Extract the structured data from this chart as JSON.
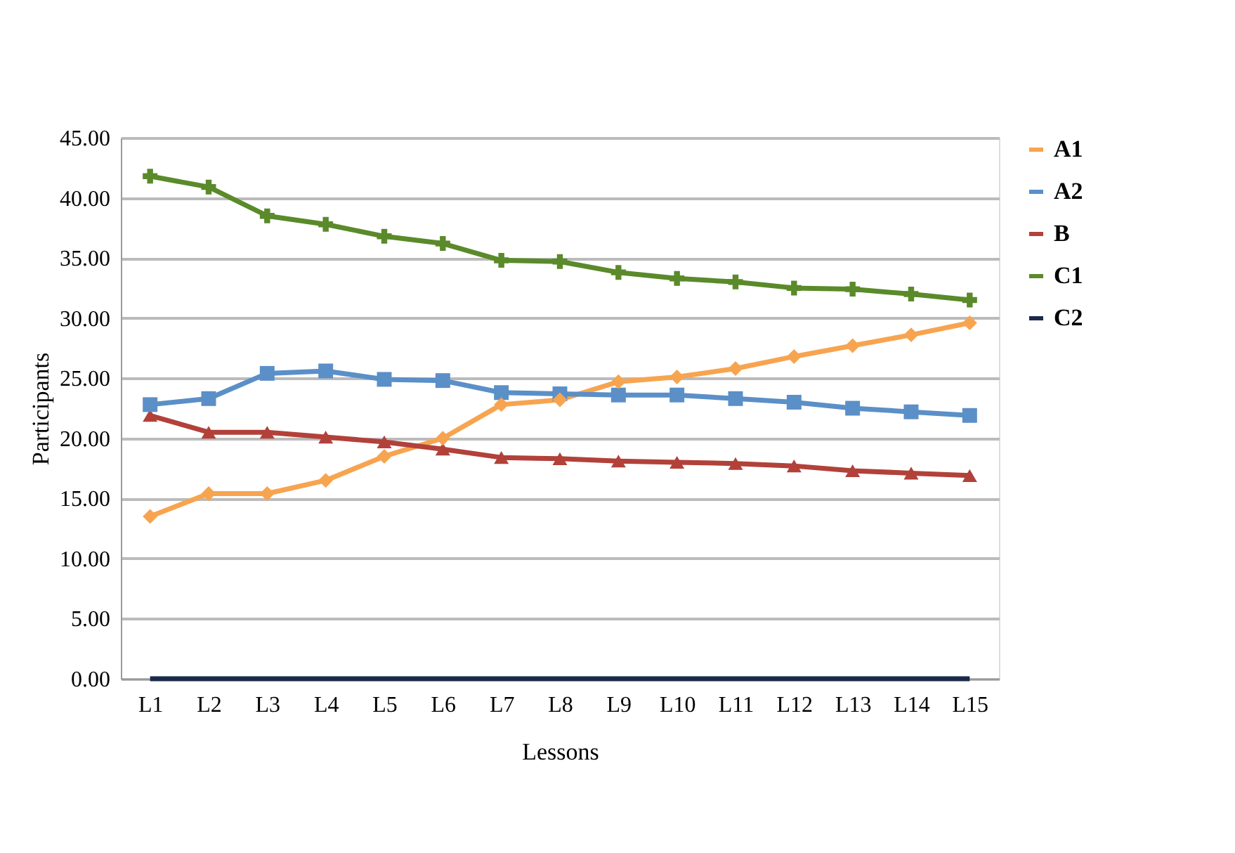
{
  "chart_data": {
    "type": "line",
    "xlabel": "Lessons",
    "ylabel": "Participants",
    "categories": [
      "L1",
      "L2",
      "L3",
      "L4",
      "L5",
      "L6",
      "L7",
      "L8",
      "L9",
      "L10",
      "L11",
      "L12",
      "L13",
      "L14",
      "L15"
    ],
    "series": [
      {
        "name": "A1",
        "color": "#f7a450",
        "marker": "diamond",
        "values": [
          13.5,
          15.4,
          15.4,
          16.5,
          18.5,
          20.0,
          22.8,
          23.2,
          24.7,
          25.1,
          25.8,
          26.8,
          27.7,
          28.6,
          29.6
        ]
      },
      {
        "name": "A2",
        "color": "#5b8fc7",
        "marker": "square",
        "values": [
          22.8,
          23.3,
          25.4,
          25.6,
          24.9,
          24.8,
          23.8,
          23.7,
          23.6,
          23.6,
          23.3,
          23.0,
          22.5,
          22.2,
          21.9
        ]
      },
      {
        "name": "B",
        "color": "#b2413a",
        "marker": "triangle",
        "values": [
          21.9,
          20.5,
          20.5,
          20.1,
          19.7,
          19.1,
          18.4,
          18.3,
          18.1,
          18.0,
          17.9,
          17.7,
          17.3,
          17.1,
          16.9
        ]
      },
      {
        "name": "C1",
        "color": "#5a8a2a",
        "marker": "cross",
        "values": [
          41.8,
          40.9,
          38.5,
          37.8,
          36.8,
          36.2,
          34.8,
          34.7,
          33.8,
          33.3,
          33.0,
          32.5,
          32.4,
          32.0,
          31.5
        ]
      },
      {
        "name": "C2",
        "color": "#1b2a4a",
        "marker": "none",
        "values": [
          0,
          0,
          0,
          0,
          0,
          0,
          0,
          0,
          0,
          0,
          0,
          0,
          0,
          0,
          0
        ]
      }
    ],
    "ylim": [
      0,
      45
    ],
    "yticks": [
      {
        "value": 0,
        "label": "0.00"
      },
      {
        "value": 5,
        "label": "5.00"
      },
      {
        "value": 10,
        "label": "10.00"
      },
      {
        "value": 15,
        "label": "15.00"
      },
      {
        "value": 20,
        "label": "20.00"
      },
      {
        "value": 25,
        "label": "25.00"
      },
      {
        "value": 30,
        "label": "30.00"
      },
      {
        "value": 35,
        "label": "35.00"
      },
      {
        "value": 40,
        "label": "40.00"
      },
      {
        "value": 45,
        "label": "45.00"
      }
    ],
    "grid": "y",
    "legend": "right",
    "line_style": "solid"
  }
}
